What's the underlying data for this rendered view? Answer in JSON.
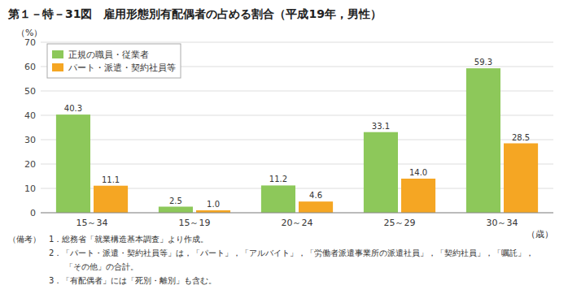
{
  "chart_data": {
    "type": "bar",
    "title": "第１－特－31図　雇用形態別有配偶者の占める割合（平成19年，男性）",
    "categories": [
      "15～34",
      "15～19",
      "20～24",
      "25～29",
      "30～34"
    ],
    "xlabel": "（歳）",
    "ylabel": "（%）",
    "series": [
      {
        "name": "正規の職員・従業者",
        "color": "#8dc85a",
        "values": [
          40.3,
          2.5,
          11.2,
          33.1,
          59.3
        ],
        "value_labels": [
          "40.3",
          "2.5",
          "11.2",
          "33.1",
          "59.3"
        ]
      },
      {
        "name": "パート・派遣・契約社員等",
        "color": "#f5a623",
        "values": [
          11.1,
          1.0,
          4.6,
          14.0,
          28.5
        ],
        "value_labels": [
          "11.1",
          "1.0",
          "4.6",
          "14.0",
          "28.5"
        ]
      }
    ],
    "ylim": [
      0,
      70
    ],
    "yticks": [
      0,
      10,
      20,
      30,
      40,
      50,
      60,
      70
    ],
    "grid": true,
    "legend": "upper left",
    "data_labels": true,
    "annotations": [
      "（備考）　1．総務省「就業構造基本調査」より作成。",
      "　　　　　2．「パート・派遣・契約社員等」は，「パート」，「アルバイト」，「労働者派遣事業所の派遣社員」，「契約社員」，「嘱託」，",
      "　　　　　　　「その他」の合計。",
      "　　　　　3．「有配偶者」には「死別・離別」も含む。"
    ]
  }
}
